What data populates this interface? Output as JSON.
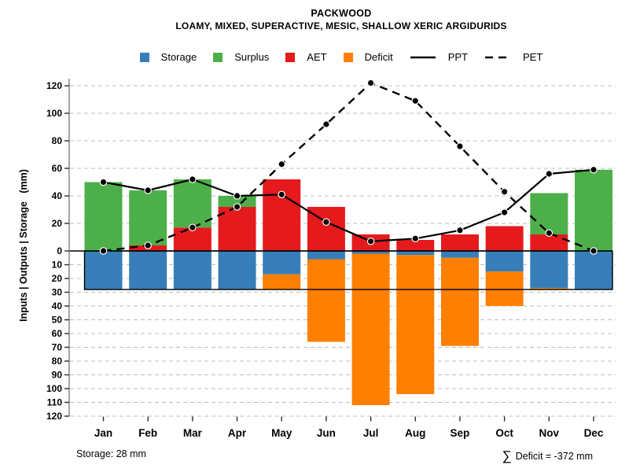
{
  "header": {
    "title": "PACKWOOD",
    "subtitle": "LOAMY, MIXED, SUPERACTIVE, MESIC, SHALLOW XERIC ARGIDURIDS"
  },
  "legend": {
    "items": [
      {
        "label": "Storage",
        "sample": "swatch",
        "color": "#377EB8"
      },
      {
        "label": "Surplus",
        "sample": "swatch",
        "color": "#4DAF4A"
      },
      {
        "label": "AET",
        "sample": "swatch",
        "color": "#E41A1C"
      },
      {
        "label": "Deficit",
        "sample": "swatch",
        "color": "#FF7F00"
      },
      {
        "label": "PPT",
        "sample": "solid-line",
        "color": "#000000"
      },
      {
        "label": "PET",
        "sample": "dashed-line",
        "color": "#000000"
      }
    ]
  },
  "y_axis": {
    "label": "Inputs | Outputs | Storage   (mm)",
    "upper_ticks": [
      120,
      100,
      80,
      60,
      40,
      20,
      0
    ],
    "lower_ticks": [
      10,
      20,
      30,
      40,
      50,
      60,
      70,
      80,
      90,
      100,
      110,
      120
    ]
  },
  "footer": {
    "storage_note": "Storage: 28 mm",
    "sigma": "∑",
    "deficit_note": "Deficit = -372 mm"
  },
  "chart_data": {
    "type": "bar",
    "subtype": "monthly-water-balance stacked bars with overlaid lines",
    "categories": [
      "Jan",
      "Feb",
      "Mar",
      "Apr",
      "May",
      "Jun",
      "Jul",
      "Aug",
      "Sep",
      "Oct",
      "Nov",
      "Dec"
    ],
    "ylim": [
      -120,
      120
    ],
    "upper_tick_step": 20,
    "lower_tick_step": 10,
    "grid": "dashed horizontal gridlines at every tick",
    "legend_position": "top center",
    "storage_capacity_mm": 28,
    "deficit_total_mm": -372,
    "series": [
      {
        "name": "Surplus",
        "type": "bar",
        "stack": "above-zero, on top of AET",
        "color": "#4DAF4A",
        "values": [
          50,
          40,
          35,
          8,
          0,
          0,
          0,
          0,
          0,
          0,
          30,
          59
        ]
      },
      {
        "name": "AET",
        "type": "bar",
        "stack": "above-zero, from 0",
        "color": "#E41A1C",
        "values": [
          0,
          4,
          17,
          32,
          52,
          32,
          12,
          8,
          12,
          18,
          12,
          0
        ]
      },
      {
        "name": "Storage",
        "type": "bar",
        "stack": "below-zero, from 0 downward",
        "color": "#377EB8",
        "values": [
          28,
          28,
          28,
          28,
          17,
          6,
          2,
          3,
          5,
          15,
          27,
          28
        ]
      },
      {
        "name": "Deficit",
        "type": "bar",
        "stack": "below-zero, stacked under Storage",
        "color": "#FF7F00",
        "values": [
          0,
          0,
          0,
          0,
          11,
          60,
          110,
          101,
          64,
          25,
          1,
          0
        ]
      },
      {
        "name": "PPT",
        "type": "line",
        "style": "solid",
        "marker": "filled-circle",
        "color": "#000000",
        "values": [
          50,
          44,
          52,
          40,
          41,
          21,
          7,
          9,
          15,
          28,
          56,
          59
        ]
      },
      {
        "name": "PET",
        "type": "line",
        "style": "dashed",
        "marker": "filled-circle",
        "color": "#000000",
        "values": [
          0,
          4,
          17,
          32,
          63,
          92,
          122,
          109,
          76,
          43,
          13,
          0
        ]
      }
    ]
  }
}
